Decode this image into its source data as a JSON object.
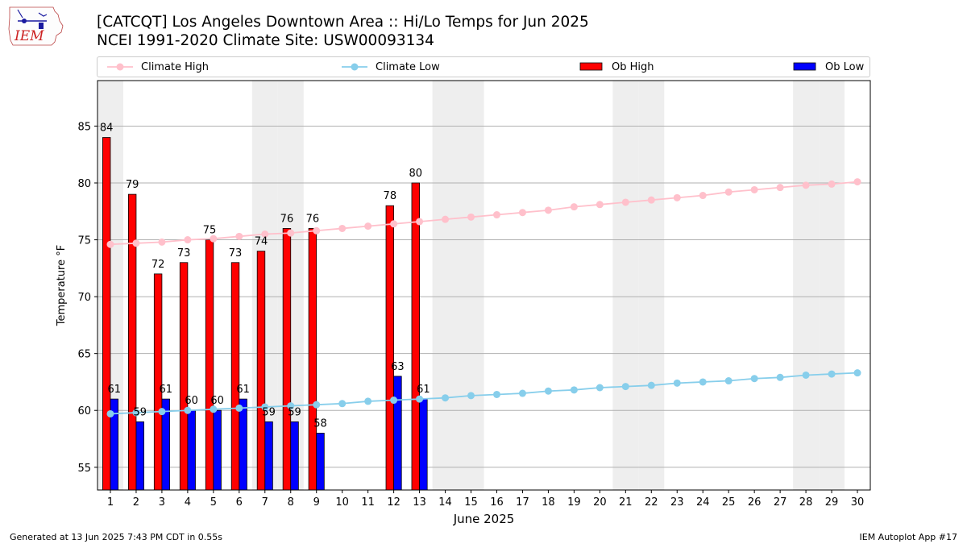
{
  "header": {
    "title_line1": "[CATCQT] Los Angeles Downtown Area :: Hi/Lo Temps for Jun 2025",
    "title_line2": "NCEI 1991-2020 Climate Site: USW00093134"
  },
  "logo": {
    "text": "IEM"
  },
  "footer": {
    "left": "Generated at 13 Jun 2025 7:43 PM CDT in 0.55s",
    "right": "IEM Autoplot App #17"
  },
  "colors": {
    "climate_high": "#ffc0cb",
    "climate_low": "#87ceeb",
    "ob_high": "#ff0000",
    "ob_low": "#0000ff",
    "weekend_band": "#eeeeee",
    "grid": "#b0b0b0"
  },
  "legend": {
    "placement": "top, above plot",
    "items": [
      {
        "label": "Climate High",
        "kind": "line",
        "color": "#ffc0cb"
      },
      {
        "label": "Climate Low",
        "kind": "line",
        "color": "#87ceeb"
      },
      {
        "label": "Ob High",
        "kind": "bar",
        "color": "#ff0000"
      },
      {
        "label": "Ob Low",
        "kind": "bar",
        "color": "#0000ff"
      }
    ]
  },
  "chart_data": {
    "type": "bar",
    "xlabel": "June 2025",
    "ylabel": "Temperature °F",
    "xlim": [
      0.5,
      30.5
    ],
    "ylim": [
      53,
      89
    ],
    "yticks": [
      55,
      60,
      65,
      70,
      75,
      80,
      85
    ],
    "grid": "horizontal",
    "days": [
      1,
      2,
      3,
      4,
      5,
      6,
      7,
      8,
      9,
      10,
      11,
      12,
      13,
      14,
      15,
      16,
      17,
      18,
      19,
      20,
      21,
      22,
      23,
      24,
      25,
      26,
      27,
      28,
      29,
      30
    ],
    "weekend_days": [
      1,
      7,
      8,
      14,
      15,
      21,
      22,
      28,
      29
    ],
    "series": [
      {
        "name": "Ob High",
        "kind": "bar",
        "values": [
          84,
          79,
          72,
          73,
          75,
          73,
          74,
          76,
          76,
          null,
          null,
          78,
          80,
          null,
          null,
          null,
          null,
          null,
          null,
          null,
          null,
          null,
          null,
          null,
          null,
          null,
          null,
          null,
          null,
          null
        ]
      },
      {
        "name": "Ob Low",
        "kind": "bar",
        "values": [
          61,
          59,
          61,
          60,
          60,
          61,
          59,
          59,
          58,
          null,
          null,
          63,
          61,
          null,
          null,
          null,
          null,
          null,
          null,
          null,
          null,
          null,
          null,
          null,
          null,
          null,
          null,
          null,
          null,
          null
        ]
      },
      {
        "name": "Climate High",
        "kind": "line",
        "values": [
          74.6,
          74.7,
          74.8,
          75.0,
          75.1,
          75.3,
          75.5,
          75.6,
          75.8,
          76.0,
          76.2,
          76.4,
          76.6,
          76.8,
          77.0,
          77.2,
          77.4,
          77.6,
          77.9,
          78.1,
          78.3,
          78.5,
          78.7,
          78.9,
          79.2,
          79.4,
          79.6,
          79.8,
          79.9,
          80.1
        ]
      },
      {
        "name": "Climate Low",
        "kind": "line",
        "values": [
          59.7,
          59.8,
          59.9,
          60.0,
          60.1,
          60.2,
          60.3,
          60.4,
          60.5,
          60.6,
          60.8,
          60.9,
          61.0,
          61.1,
          61.3,
          61.4,
          61.5,
          61.7,
          61.8,
          62.0,
          62.1,
          62.2,
          62.4,
          62.5,
          62.6,
          62.8,
          62.9,
          63.1,
          63.2,
          63.3
        ]
      }
    ]
  }
}
